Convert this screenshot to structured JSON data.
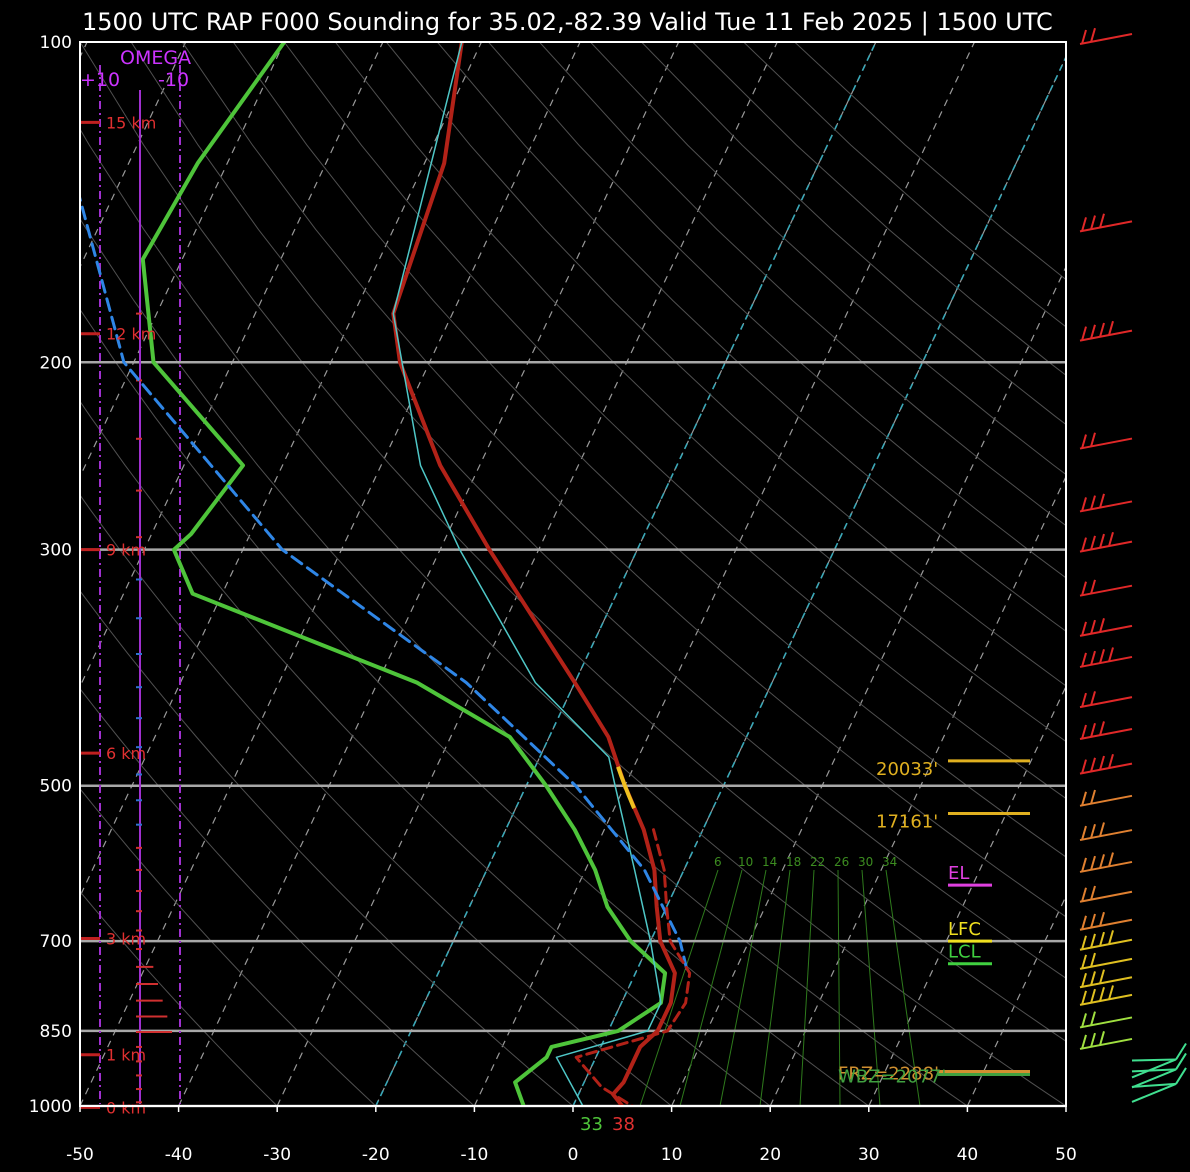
{
  "chart_data": {
    "type": "line",
    "title": "1500 UTC RAP F000 Sounding for 35.02,-82.39 Valid  Tue 11 Feb 2025 | 1500 UTC",
    "xlabel": "",
    "ylabel": "",
    "x_axis": "temperature (C), skewed",
    "y_axis": "pressure (mb), log",
    "xlim": [
      -50,
      50
    ],
    "ylim": [
      1000,
      100
    ],
    "temperature_ticks": [
      -50,
      -40,
      -30,
      -20,
      -10,
      0,
      10,
      20,
      30,
      40,
      50
    ],
    "pressure_ticks": [
      {
        "p": 100,
        "label": "100"
      },
      {
        "p": 200,
        "label": "200"
      },
      {
        "p": 300,
        "label": "300"
      },
      {
        "p": 500,
        "label": "500"
      },
      {
        "p": 700,
        "label": "700"
      },
      {
        "p": 850,
        "label": "850"
      },
      {
        "p": 1000,
        "label": "1000"
      }
    ],
    "isobars": [
      200,
      300,
      500,
      700,
      850,
      1000
    ],
    "height_labels": [
      {
        "p": 119,
        "label": "15 km"
      },
      {
        "p": 188,
        "label": "12 km"
      },
      {
        "p": 300,
        "label": "9 km"
      },
      {
        "p": 466,
        "label": "6 km"
      },
      {
        "p": 696,
        "label": "3 km"
      },
      {
        "p": 895,
        "label": "1 km"
      },
      {
        "p": 1003,
        "label": "0 km"
      }
    ],
    "omega": {
      "label": "OMEGA",
      "left_label": "+10",
      "right_label": "-10",
      "left_value": 10,
      "right_value": -10
    },
    "series": [
      {
        "name": "",
        "color": "#b22218",
        "width": 4,
        "points": [
          [
            100,
            -62
          ],
          [
            130,
            -58
          ],
          [
            180,
            -56
          ],
          [
            200,
            -53
          ],
          [
            250,
            -44
          ],
          [
            300,
            -35
          ],
          [
            400,
            -20
          ],
          [
            450,
            -14
          ],
          [
            500,
            -10
          ],
          [
            550,
            -6
          ],
          [
            600,
            -3
          ],
          [
            650,
            -1
          ],
          [
            700,
            1
          ],
          [
            750,
            4
          ],
          [
            800,
            5
          ],
          [
            850,
            5
          ],
          [
            880,
            4
          ],
          [
            950,
            4
          ],
          [
            975,
            3.5
          ],
          [
            1000,
            5
          ]
        ]
      },
      {
        "name": "",
        "color": "#4ec43a",
        "width": 4,
        "points": [
          [
            100,
            -80
          ],
          [
            130,
            -83
          ],
          [
            160,
            -84
          ],
          [
            200,
            -78
          ],
          [
            250,
            -64
          ],
          [
            290,
            -66
          ],
          [
            300,
            -67
          ],
          [
            330,
            -63
          ],
          [
            400,
            -36
          ],
          [
            450,
            -24
          ],
          [
            500,
            -18
          ],
          [
            550,
            -13
          ],
          [
            600,
            -9
          ],
          [
            650,
            -6
          ],
          [
            700,
            -2
          ],
          [
            750,
            3
          ],
          [
            800,
            4
          ],
          [
            850,
            1
          ],
          [
            880,
            -5
          ],
          [
            900,
            -5
          ],
          [
            950,
            -7
          ],
          [
            1000,
            -5
          ]
        ]
      },
      {
        "name": "",
        "color": "#4fc7c7",
        "width": 1.5,
        "points": [
          [
            100,
            -62
          ],
          [
            180,
            -56
          ],
          [
            250,
            -46
          ],
          [
            300,
            -38
          ],
          [
            400,
            -24
          ],
          [
            470,
            -13
          ],
          [
            500,
            -11
          ],
          [
            600,
            -5
          ],
          [
            700,
            0
          ],
          [
            800,
            4
          ],
          [
            850,
            4
          ],
          [
            900,
            -4
          ],
          [
            1000,
            1
          ]
        ]
      },
      {
        "name": "",
        "color": "#2f86e6",
        "width": 3,
        "dash": "12,7",
        "points": [
          [
            100,
            -105
          ],
          [
            200,
            -81
          ],
          [
            300,
            -56
          ],
          [
            400,
            -31
          ],
          [
            500,
            -15
          ],
          [
            600,
            -4
          ],
          [
            700,
            3
          ],
          [
            750,
            5.3
          ]
        ]
      },
      {
        "name": "",
        "color": "#b22218",
        "width": 3,
        "dash": "10,6",
        "points": [
          [
            550,
            -5
          ],
          [
            600,
            -2
          ],
          [
            650,
            0
          ],
          [
            700,
            2
          ],
          [
            750,
            5.5
          ],
          [
            800,
            6.5
          ],
          [
            850,
            6
          ],
          [
            900,
            -2
          ],
          [
            960,
            2
          ],
          [
            1000,
            6
          ]
        ]
      }
    ],
    "parcel_highlight": {
      "color": "#f0c020",
      "p_top": 480,
      "p_bottom": 525
    },
    "levels": [
      {
        "label": "20033'",
        "p": 480,
        "color": "#e0b020"
      },
      {
        "label": "17161'",
        "p": 538,
        "color": "#e0b020"
      },
      {
        "label": "EL",
        "p": 620,
        "color": "#e040e0"
      },
      {
        "label": "LFC",
        "p": 700,
        "color": "#f0e020"
      },
      {
        "label": "LCL",
        "p": 735,
        "color": "#40d040"
      },
      {
        "label": "FRZ=2288'",
        "p": 928,
        "color": "#d09030"
      },
      {
        "label": "WBZ=2077'",
        "p": 934,
        "color": "#40a040"
      }
    ],
    "mixing_ratio_labels": [
      "6",
      "10",
      "14",
      "18",
      "22",
      "26",
      "30",
      "34"
    ],
    "surface": {
      "dewpoint_label": "33",
      "temperature_label": "38",
      "dewpoint_color": "#4ec43a",
      "temperature_color": "#e03030"
    },
    "wind_barbs": [
      100,
      150,
      190,
      240,
      275,
      300,
      330,
      360,
      385,
      420,
      450,
      485,
      520,
      560,
      600,
      640,
      680,
      710,
      740,
      770,
      800,
      840,
      880,
      920,
      940,
      970
    ]
  }
}
